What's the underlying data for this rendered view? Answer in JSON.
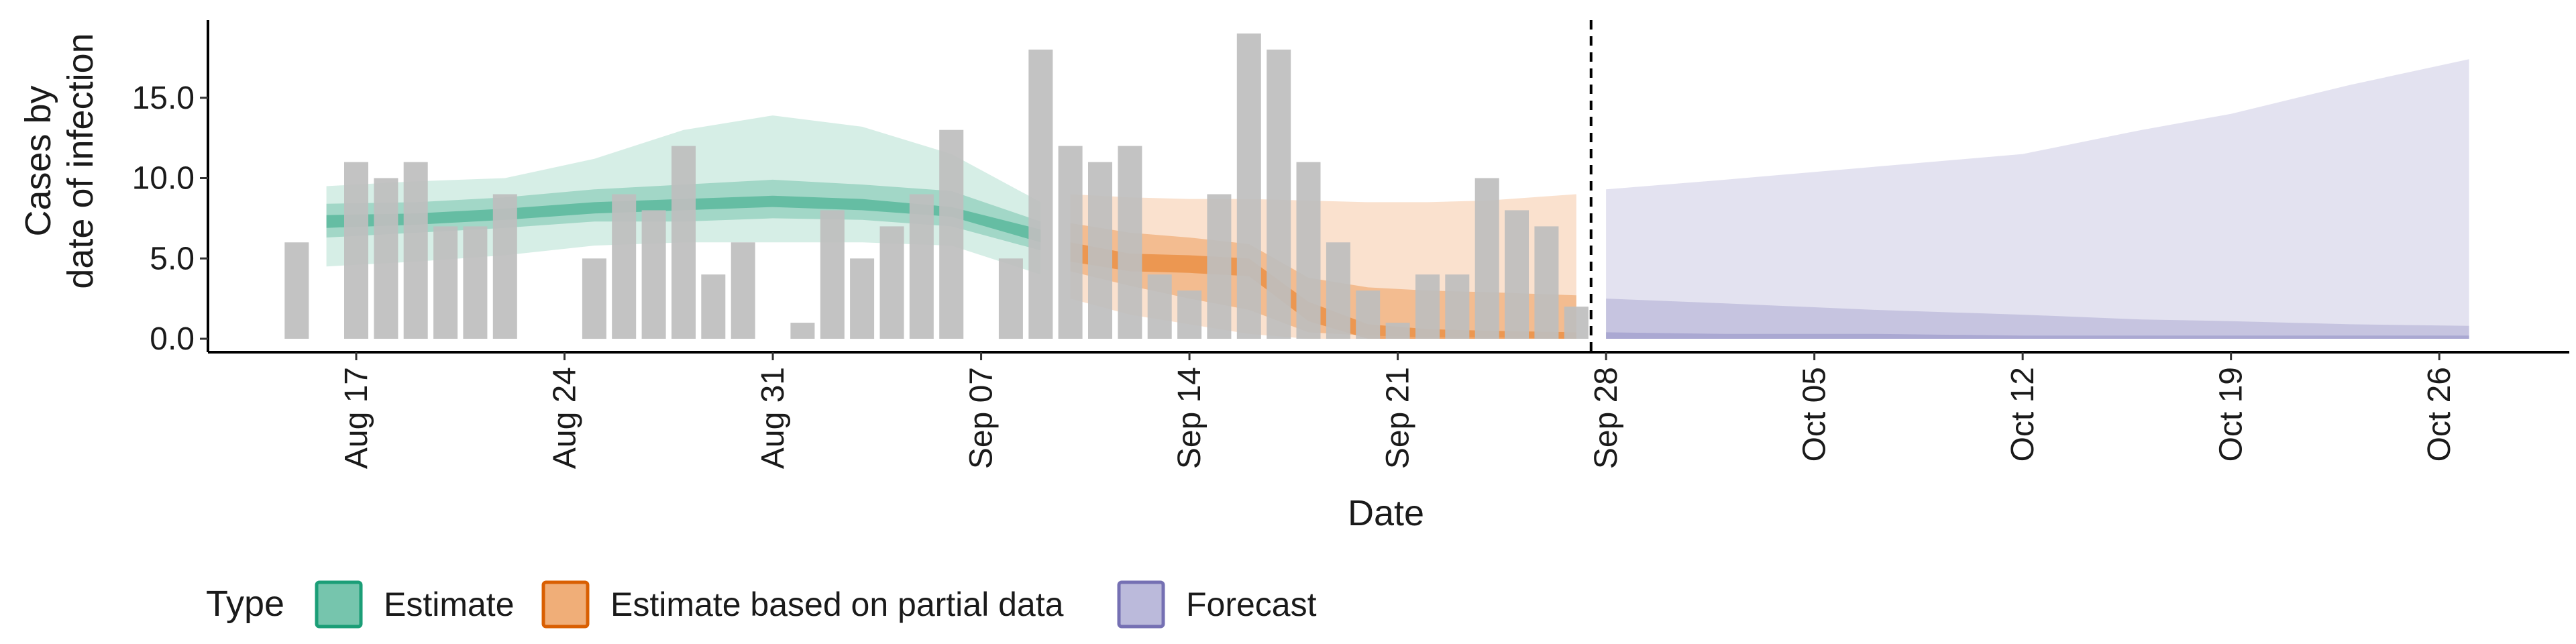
{
  "chart_data": {
    "type": "bar",
    "xlabel": "Date",
    "ylabel_lines": [
      "Cases by",
      "date of infection"
    ],
    "ylim": [
      -0.8,
      19.8
    ],
    "yticks": [
      "0.0",
      "5.0",
      "10.0",
      "15.0"
    ],
    "ytick_values": [
      0,
      5,
      10,
      15
    ],
    "x_range": [
      "2020-08-10",
      "2020-10-30"
    ],
    "xticks": [
      {
        "date": "2020-08-17",
        "label": "Aug 17"
      },
      {
        "date": "2020-08-24",
        "label": "Aug 24"
      },
      {
        "date": "2020-08-31",
        "label": "Aug 31"
      },
      {
        "date": "2020-09-07",
        "label": "Sep 07"
      },
      {
        "date": "2020-09-14",
        "label": "Sep 14"
      },
      {
        "date": "2020-09-21",
        "label": "Sep 21"
      },
      {
        "date": "2020-09-28",
        "label": "Sep 28"
      },
      {
        "date": "2020-10-05",
        "label": "Oct 05"
      },
      {
        "date": "2020-10-12",
        "label": "Oct 12"
      },
      {
        "date": "2020-10-19",
        "label": "Oct 19"
      },
      {
        "date": "2020-10-26",
        "label": "Oct 26"
      }
    ],
    "bar_color": "#bebebe",
    "observed_cases": [
      {
        "date": "2020-08-15",
        "value": 6
      },
      {
        "date": "2020-08-17",
        "value": 11
      },
      {
        "date": "2020-08-18",
        "value": 10
      },
      {
        "date": "2020-08-19",
        "value": 11
      },
      {
        "date": "2020-08-20",
        "value": 7
      },
      {
        "date": "2020-08-21",
        "value": 7
      },
      {
        "date": "2020-08-22",
        "value": 9
      },
      {
        "date": "2020-08-25",
        "value": 5
      },
      {
        "date": "2020-08-26",
        "value": 9
      },
      {
        "date": "2020-08-27",
        "value": 8
      },
      {
        "date": "2020-08-28",
        "value": 12
      },
      {
        "date": "2020-08-29",
        "value": 4
      },
      {
        "date": "2020-08-30",
        "value": 6
      },
      {
        "date": "2020-09-01",
        "value": 1
      },
      {
        "date": "2020-09-02",
        "value": 8
      },
      {
        "date": "2020-09-03",
        "value": 5
      },
      {
        "date": "2020-09-04",
        "value": 7
      },
      {
        "date": "2020-09-05",
        "value": 9
      },
      {
        "date": "2020-09-06",
        "value": 13
      },
      {
        "date": "2020-09-08",
        "value": 5
      },
      {
        "date": "2020-09-09",
        "value": 18
      },
      {
        "date": "2020-09-10",
        "value": 12
      },
      {
        "date": "2020-09-11",
        "value": 11
      },
      {
        "date": "2020-09-12",
        "value": 12
      },
      {
        "date": "2020-09-13",
        "value": 4
      },
      {
        "date": "2020-09-14",
        "value": 3
      },
      {
        "date": "2020-09-15",
        "value": 9
      },
      {
        "date": "2020-09-16",
        "value": 19
      },
      {
        "date": "2020-09-17",
        "value": 18
      },
      {
        "date": "2020-09-18",
        "value": 11
      },
      {
        "date": "2020-09-19",
        "value": 6
      },
      {
        "date": "2020-09-20",
        "value": 3
      },
      {
        "date": "2020-09-21",
        "value": 1
      },
      {
        "date": "2020-09-22",
        "value": 4
      },
      {
        "date": "2020-09-23",
        "value": 4
      },
      {
        "date": "2020-09-24",
        "value": 10
      },
      {
        "date": "2020-09-25",
        "value": 8
      },
      {
        "date": "2020-09-26",
        "value": 7
      },
      {
        "date": "2020-09-27",
        "value": 2
      }
    ],
    "vline_date": "2020-09-27",
    "estimate_types": [
      {
        "name": "Estimate",
        "fill": "#1b9e77",
        "stroke": "#1b9e77",
        "legend_fill": "#7fc9a8",
        "dates": [
          "2020-08-16",
          "2020-08-19",
          "2020-08-22",
          "2020-08-25",
          "2020-08-28",
          "2020-08-31",
          "2020-09-03",
          "2020-09-06",
          "2020-09-09"
        ],
        "bands": [
          {
            "opacity": 0.18,
            "lower": [
              4.5,
              4.8,
              5.2,
              5.8,
              6.0,
              6.0,
              6.0,
              5.8,
              4.0
            ],
            "upper": [
              9.5,
              9.8,
              10.0,
              11.2,
              13.0,
              13.9,
              13.2,
              11.5,
              8.5
            ]
          },
          {
            "opacity": 0.28,
            "lower": [
              6.3,
              6.6,
              6.9,
              7.3,
              7.3,
              7.5,
              7.4,
              7.0,
              5.5
            ],
            "upper": [
              8.4,
              8.5,
              8.8,
              9.3,
              9.6,
              9.9,
              9.6,
              9.2,
              7.3
            ]
          },
          {
            "opacity": 0.45,
            "lower": [
              6.9,
              7.1,
              7.4,
              7.8,
              8.0,
              8.2,
              8.0,
              7.6,
              6.0
            ],
            "upper": [
              7.7,
              7.8,
              8.1,
              8.5,
              8.7,
              8.9,
              8.7,
              8.2,
              6.8
            ]
          }
        ]
      },
      {
        "name": "Estimate based on partial data",
        "fill": "#e6781e",
        "stroke": "#d95f02",
        "legend_fill": "#f0a36a",
        "dates": [
          "2020-09-10",
          "2020-09-12",
          "2020-09-14",
          "2020-09-16",
          "2020-09-18",
          "2020-09-20",
          "2020-09-22",
          "2020-09-24",
          "2020-09-27"
        ],
        "bands": [
          {
            "opacity": 0.22,
            "lower": [
              2.5,
              1.5,
              0.9,
              0.3,
              0.0,
              0.0,
              0.0,
              0.0,
              0.0
            ],
            "upper": [
              9.0,
              8.8,
              8.7,
              8.7,
              8.6,
              8.5,
              8.5,
              8.6,
              9.0
            ]
          },
          {
            "opacity": 0.35,
            "lower": [
              4.2,
              3.3,
              2.5,
              1.8,
              0.4,
              0.2,
              0.1,
              0.1,
              0.0
            ],
            "upper": [
              7.2,
              6.6,
              6.3,
              5.9,
              3.8,
              3.2,
              3.0,
              2.9,
              2.7
            ]
          },
          {
            "opacity": 0.55,
            "lower": [
              4.8,
              4.2,
              4.1,
              3.9,
              1.1,
              0.0,
              0.0,
              0.0,
              0.0
            ],
            "upper": [
              6.0,
              5.3,
              5.2,
              5.0,
              2.3,
              0.9,
              0.6,
              0.5,
              0.4
            ]
          }
        ]
      },
      {
        "name": "Forecast",
        "fill": "#8e8cc3",
        "stroke": "#7570b3",
        "legend_fill": "#ab a8d3",
        "dates": [
          "2020-09-28",
          "2020-10-02",
          "2020-10-07",
          "2020-10-12",
          "2020-10-16",
          "2020-10-19",
          "2020-10-23",
          "2020-10-27"
        ],
        "bands": [
          {
            "opacity": 0.25,
            "lower": [
              0.0,
              0.0,
              0.0,
              0.0,
              0.0,
              0.0,
              0.0,
              0.0
            ],
            "upper": [
              9.3,
              9.9,
              10.7,
              11.5,
              13.0,
              14.0,
              15.8,
              17.4
            ]
          },
          {
            "opacity": 0.35,
            "lower": [
              0.0,
              0.0,
              0.0,
              0.0,
              0.0,
              0.0,
              0.0,
              0.0
            ],
            "upper": [
              2.5,
              2.2,
              1.8,
              1.5,
              1.2,
              1.1,
              0.9,
              0.8
            ]
          },
          {
            "opacity": 0.5,
            "lower": [
              0.0,
              0.0,
              0.0,
              0.0,
              0.0,
              0.0,
              0.0,
              0.0
            ],
            "upper": [
              0.4,
              0.3,
              0.3,
              0.2,
              0.2,
              0.2,
              0.2,
              0.2
            ]
          }
        ]
      }
    ],
    "legend": {
      "title": "Type",
      "position": "bottom-left",
      "items": [
        "Estimate",
        "Estimate based on partial data",
        "Forecast"
      ]
    },
    "grid": false
  }
}
